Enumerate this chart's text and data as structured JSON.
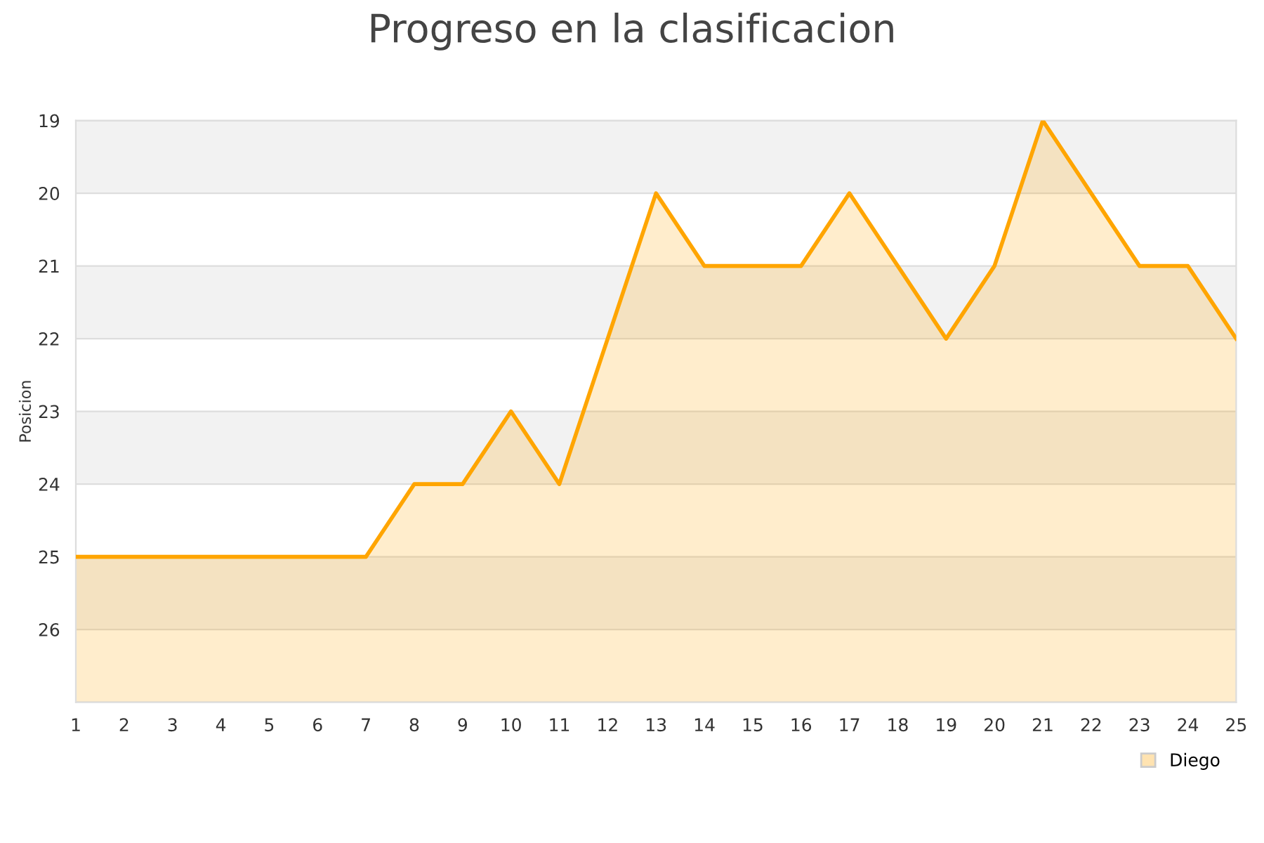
{
  "chart_data": {
    "type": "area",
    "title": "Progreso en la clasificacion",
    "ylabel": "Posicion",
    "x": [
      1,
      2,
      3,
      4,
      5,
      6,
      7,
      8,
      9,
      10,
      11,
      12,
      13,
      14,
      15,
      16,
      17,
      18,
      19,
      20,
      21,
      22,
      23,
      24,
      25
    ],
    "series": [
      {
        "name": "Diego",
        "color": "#ffa500",
        "values": [
          25,
          25,
          25,
          25,
          25,
          25,
          25,
          24,
          24,
          23,
          24,
          22,
          20,
          21,
          21,
          21,
          20,
          21,
          22,
          21,
          19,
          20,
          21,
          21,
          22
        ]
      }
    ],
    "xlim": [
      1,
      25
    ],
    "xticks": [
      1,
      2,
      3,
      4,
      5,
      6,
      7,
      8,
      9,
      10,
      11,
      12,
      13,
      14,
      15,
      16,
      17,
      18,
      19,
      20,
      21,
      22,
      23,
      24,
      25
    ],
    "ylim": [
      27,
      19
    ],
    "yticks": [
      {
        "value": 27,
        "label": null
      },
      26,
      25,
      24,
      23,
      22,
      21,
      20,
      19
    ],
    "grid": "y",
    "legend": "bottom right",
    "marker": "none"
  }
}
